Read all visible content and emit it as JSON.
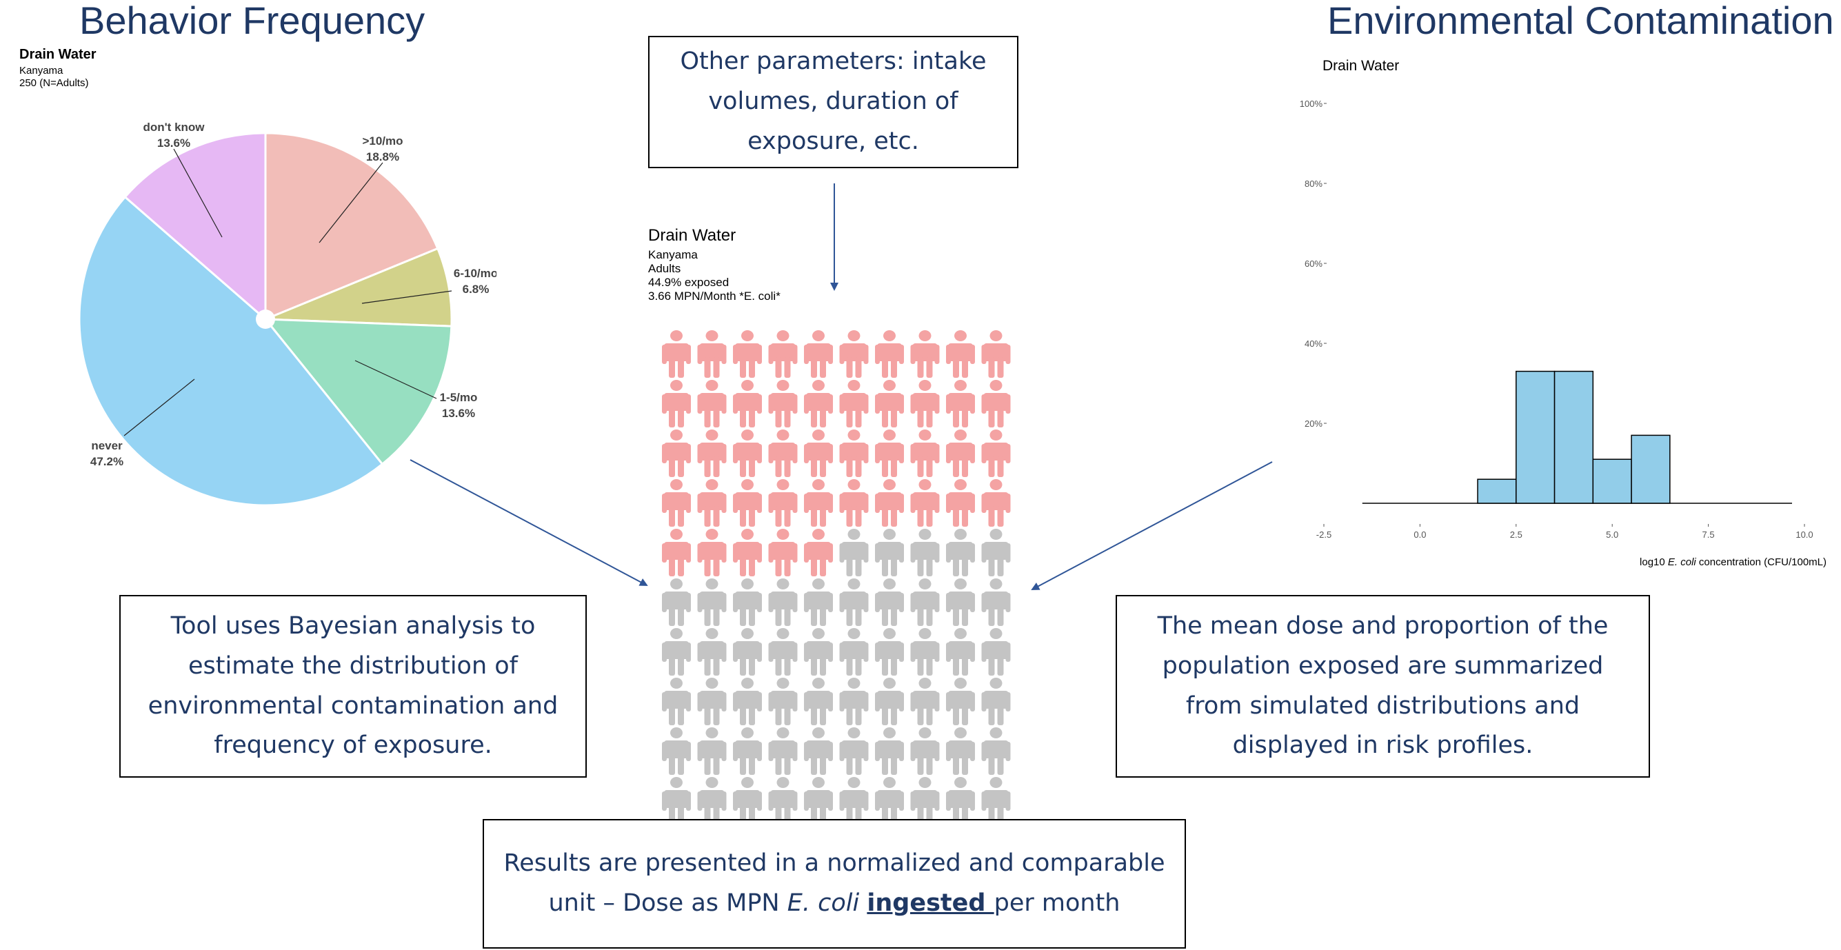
{
  "behavior": {
    "title": "Behavior Frequency",
    "chart_title": "Drain Water",
    "subtitle1": "Kanyama",
    "subtitle2": "250 (N=Adults)"
  },
  "environment": {
    "title": "Environmental Contamination",
    "chart_title": "Drain Water",
    "xlabel_prefix": "log10 ",
    "xlabel_italic": "E. coli",
    "xlabel_suffix": " concentration (CFU/100mL)"
  },
  "risk": {
    "title": "Drain Water",
    "line1": "Kanyama",
    "line2": "Adults",
    "line3": "44.9% exposed",
    "line4": "3.66 MPN/Month *E. coli*",
    "colors": {
      "exposed": "#f4a3a3",
      "unexposed": "#c4c4c4"
    }
  },
  "boxes": {
    "other_params": "Other parameters: intake volumes, duration of exposure, etc.",
    "bayesian": "Tool uses Bayesian analysis to estimate the distribution of environmental contamination and frequency of exposure.",
    "mean_dose": "The mean dose and proportion of the population exposed are summarized from simulated distributions and displayed in risk profiles.",
    "results_1": "Results are presented in a normalized and comparable",
    "results_2a": "unit – Dose as MPN ",
    "results_2b": "E. coli",
    "results_2c": " ",
    "results_2d": "ingested ",
    "results_2e": "per month"
  },
  "chart_data": [
    {
      "type": "pie",
      "title": "Drain Water",
      "slices": [
        {
          "label": ">10/mo",
          "pct_label": "18.8%",
          "value": 18.8,
          "color": "#f2bdb8"
        },
        {
          "label": "6-10/mo",
          "pct_label": "6.8%",
          "value": 6.8,
          "color": "#d2d28a"
        },
        {
          "label": "1-5/mo",
          "pct_label": "13.6%",
          "value": 13.6,
          "color": "#97dfc1"
        },
        {
          "label": "never",
          "pct_label": "47.2%",
          "value": 47.2,
          "color": "#96d4f4"
        },
        {
          "label": "don't know",
          "pct_label": "13.6%",
          "value": 13.6,
          "color": "#e6b8f4"
        }
      ]
    },
    {
      "type": "bar",
      "title": "Drain Water",
      "xlim": [
        -2.5,
        10.0
      ],
      "ylim": [
        0,
        100
      ],
      "x_ticks": [
        "-2.5",
        "0.0",
        "2.5",
        "5.0",
        "7.5",
        "10.0"
      ],
      "y_ticks": [
        "20%",
        "40%",
        "60%",
        "80%",
        "100%"
      ],
      "bins": [
        {
          "x0": 1.5,
          "x1": 2.5,
          "value": 6
        },
        {
          "x0": 2.5,
          "x1": 3.5,
          "value": 33
        },
        {
          "x0": 3.5,
          "x1": 4.5,
          "value": 33
        },
        {
          "x0": 4.5,
          "x1": 5.5,
          "value": 11
        },
        {
          "x0": 5.5,
          "x1": 6.5,
          "value": 17
        }
      ],
      "bar_color": "#92cde9"
    },
    {
      "type": "table",
      "rows": 10,
      "cols": 10,
      "exposed_count": 45
    }
  ]
}
